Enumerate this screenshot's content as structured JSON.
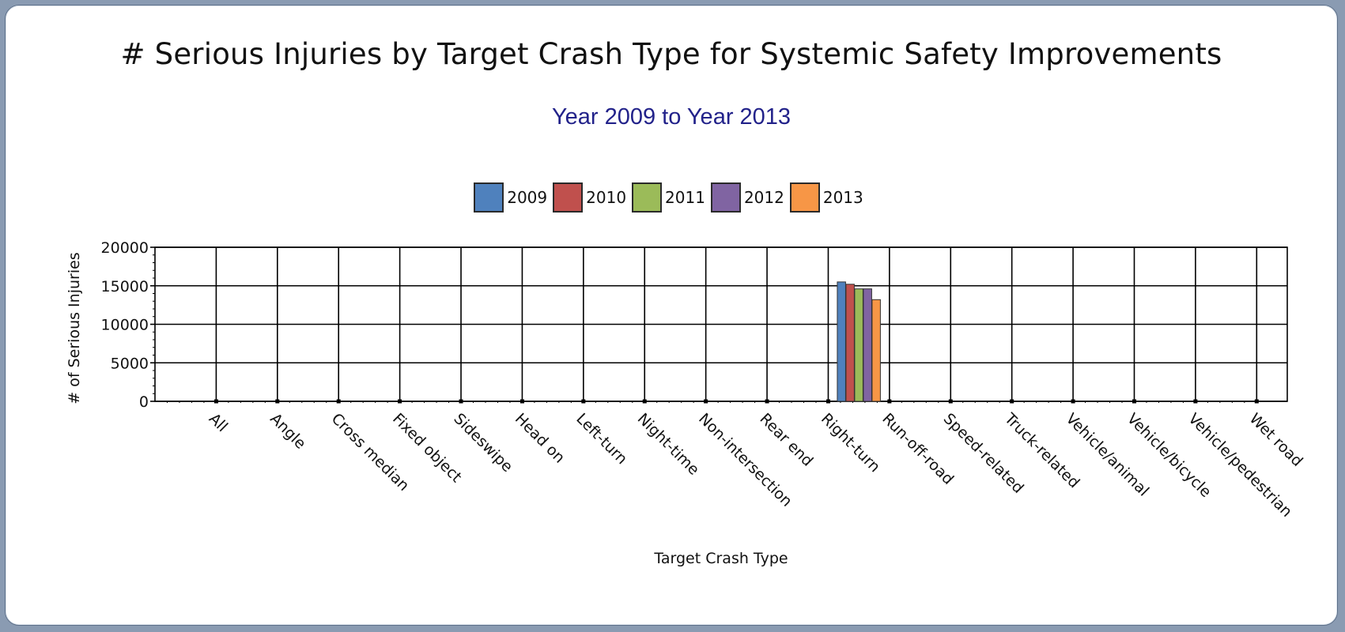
{
  "chart_data": {
    "type": "bar",
    "title": "# Serious Injuries by Target Crash Type for Systemic Safety Improvements",
    "subtitle": "Year 2009 to Year 2013",
    "xlabel": "Target Crash Type",
    "ylabel": "# of Serious Injuries",
    "ylim": [
      0,
      20000
    ],
    "yticks": [
      "0",
      "5000",
      "10000",
      "15000",
      "20000"
    ],
    "grid": true,
    "legend_position": "top-center",
    "categories": [
      "All",
      "Angle",
      "Cross median",
      "Fixed object",
      "Sideswipe",
      "Head on",
      "Left-turn",
      "Night-time",
      "Non-intersection",
      "Rear end",
      "Right-turn",
      "Run-off-road",
      "Speed-related",
      "Truck-related",
      "Vehicle/animal",
      "Vehicle/bicycle",
      "Vehicle/pedestrian",
      "Wet road"
    ],
    "series": [
      {
        "name": "2009",
        "color": "#4f81bd",
        "values": [
          0,
          0,
          0,
          0,
          0,
          0,
          0,
          0,
          0,
          0,
          0,
          15500,
          0,
          0,
          0,
          0,
          0,
          0
        ]
      },
      {
        "name": "2010",
        "color": "#c0504d",
        "values": [
          0,
          0,
          0,
          0,
          0,
          0,
          0,
          0,
          0,
          0,
          0,
          15200,
          0,
          0,
          0,
          0,
          0,
          0
        ]
      },
      {
        "name": "2011",
        "color": "#9bbb59",
        "values": [
          0,
          0,
          0,
          0,
          0,
          0,
          0,
          0,
          0,
          0,
          0,
          14600,
          0,
          0,
          0,
          0,
          0,
          0
        ]
      },
      {
        "name": "2012",
        "color": "#8064a2",
        "values": [
          0,
          0,
          0,
          0,
          0,
          0,
          0,
          0,
          0,
          0,
          0,
          14600,
          0,
          0,
          0,
          0,
          0,
          0
        ]
      },
      {
        "name": "2013",
        "color": "#f79646",
        "values": [
          0,
          0,
          0,
          0,
          0,
          0,
          0,
          0,
          0,
          0,
          0,
          13200,
          0,
          0,
          0,
          0,
          0,
          0
        ]
      }
    ]
  }
}
